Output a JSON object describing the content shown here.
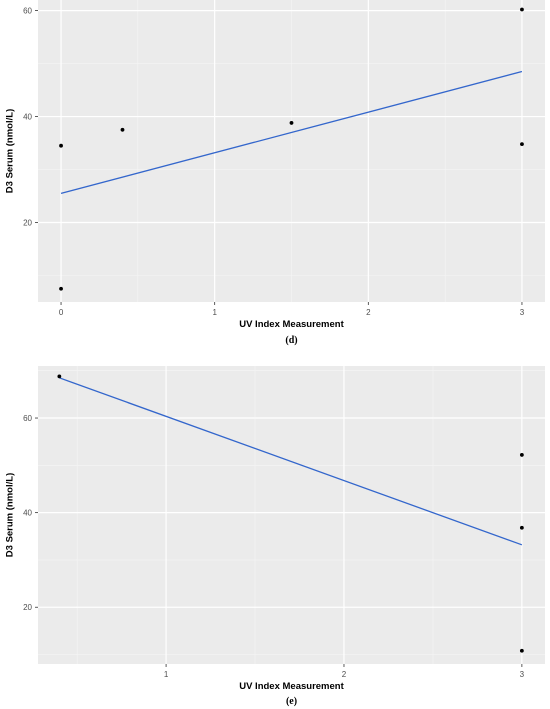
{
  "chart_data": [
    {
      "type": "scatter",
      "panel_label": "(d)",
      "xlabel": "UV Index Measurement",
      "ylabel": "D3 Serum (nmol/L)",
      "xlim": [
        -0.15,
        3.15
      ],
      "ylim": [
        5,
        62
      ],
      "x_ticks": [
        0,
        1,
        2,
        3
      ],
      "y_ticks": [
        20,
        40,
        60
      ],
      "grid": true,
      "points": [
        {
          "x": 0,
          "y": 34.5
        },
        {
          "x": 0,
          "y": 7.5
        },
        {
          "x": 0.4,
          "y": 37.5
        },
        {
          "x": 1.5,
          "y": 38.8
        },
        {
          "x": 3,
          "y": 60.2
        },
        {
          "x": 3,
          "y": 34.8
        }
      ],
      "trend_line": {
        "x": [
          0,
          3
        ],
        "y": [
          25.5,
          48.5
        ],
        "color": "#3366cc"
      }
    },
    {
      "type": "scatter",
      "panel_label": "(e)",
      "xlabel": "UV Index Measurement",
      "ylabel": "D3 Serum (nmol/L)",
      "xlim": [
        0.28,
        3.13
      ],
      "ylim": [
        8,
        71
      ],
      "x_ticks": [
        1,
        2,
        3
      ],
      "y_ticks": [
        20,
        40,
        60
      ],
      "grid": true,
      "points": [
        {
          "x": 0.4,
          "y": 68.8
        },
        {
          "x": 3,
          "y": 52.2
        },
        {
          "x": 3,
          "y": 36.8
        },
        {
          "x": 3,
          "y": 10.8
        }
      ],
      "trend_line": {
        "x": [
          0.4,
          3
        ],
        "y": [
          68.5,
          33.2
        ],
        "color": "#3366cc"
      }
    }
  ],
  "colors": {
    "panel_background": "#ebebeb",
    "grid_major": "#ffffff",
    "point": "#000000",
    "trend_line": "#3366cc"
  }
}
